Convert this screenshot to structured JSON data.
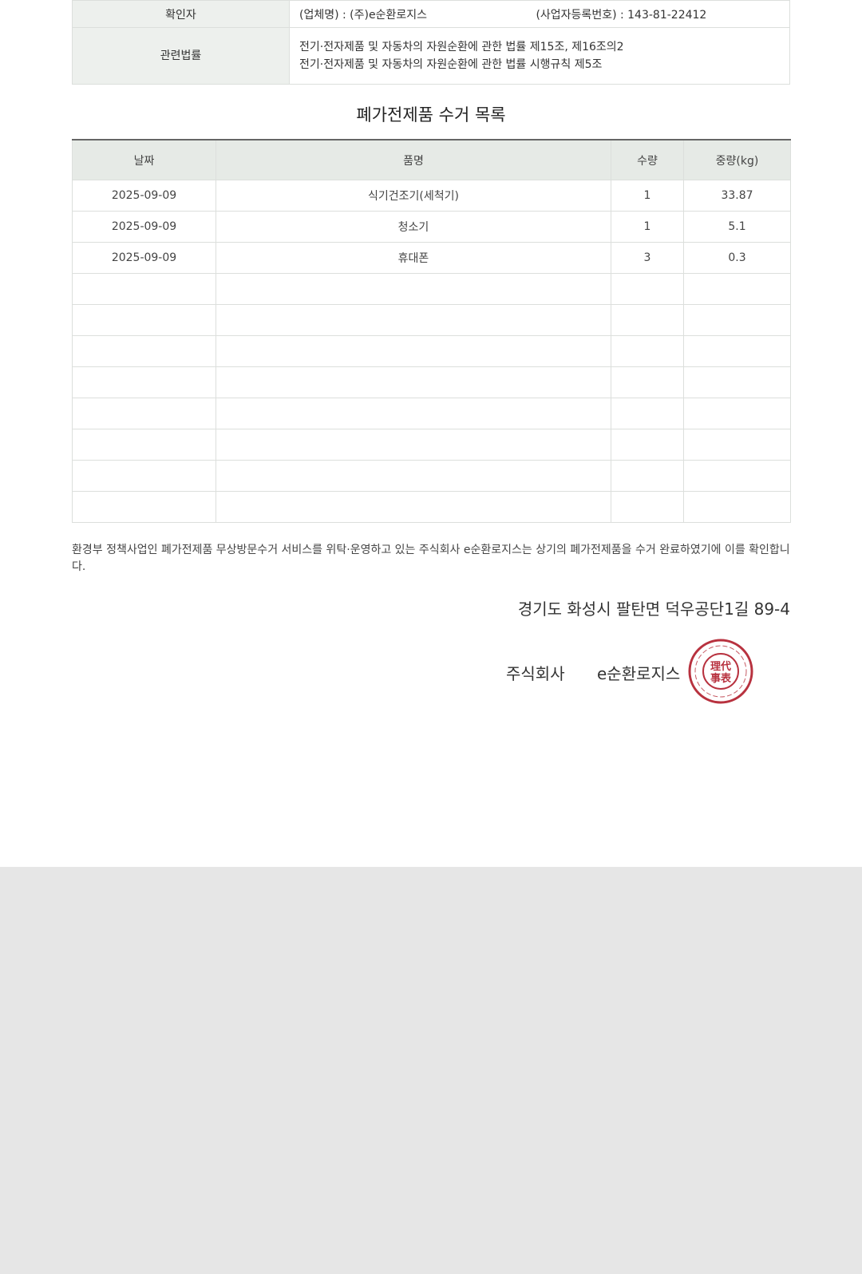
{
  "info": {
    "confirmer_label": "확인자",
    "company": "(업체명) : (주)e순환로지스",
    "bizno": "(사업자등록번호) : 143-81-22412",
    "law_label": "관련법률",
    "law_lines": [
      "전기·전자제품 및 자동차의 자원순환에 관한 법률 제15조, 제16조의2",
      "전기·전자제품 및 자동차의 자원순환에 관한 법률 시행규칙 제5조"
    ]
  },
  "list": {
    "title": "폐가전제품 수거 목록",
    "headers": [
      "날짜",
      "품명",
      "수량",
      "중량(kg)"
    ],
    "rows": [
      [
        "2025-09-09",
        "식기건조기(세척기)",
        "1",
        "33.87"
      ],
      [
        "2025-09-09",
        "청소기",
        "1",
        "5.1"
      ],
      [
        "2025-09-09",
        "휴대폰",
        "3",
        "0.3"
      ]
    ],
    "empty_rows": 8
  },
  "notice": "환경부 정책사업인 폐가전제품 무상방문수거 서비스를 위탁·운영하고 있는 주식회사 e순환로지스는 상기의 폐가전제품을 수거 완료하였기에 이를 확인합니다.",
  "address": "경기도 화성시 팔탄면 덕우공단1길 89-4",
  "signature": {
    "corp_type": "주식회사",
    "company": "e순환로지스",
    "seal_text": "代表理事",
    "seal_color": "#b8323f"
  }
}
